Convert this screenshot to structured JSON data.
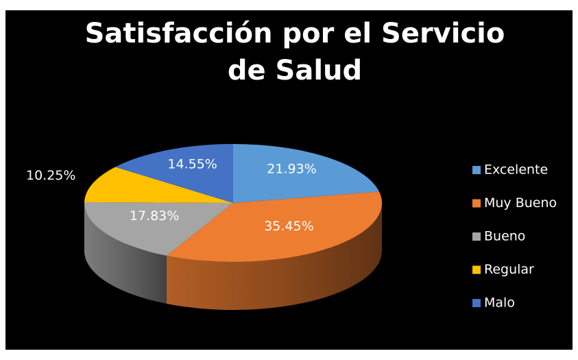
{
  "chart_data": {
    "type": "pie3d",
    "title": "Satisfacción por el Servicio de Salud",
    "categories": [
      "Excelente",
      "Muy Bueno",
      "Bueno",
      "Regular",
      "Malo"
    ],
    "values": [
      21.93,
      35.45,
      17.83,
      10.25,
      14.55
    ],
    "value_labels": [
      "21.93%",
      "35.45%",
      "17.83%",
      "10.25%",
      "14.55%"
    ],
    "colors": [
      "#5b9bd5",
      "#ed7d31",
      "#a5a5a5",
      "#ffc000",
      "#4472c4"
    ],
    "legend": "right"
  }
}
